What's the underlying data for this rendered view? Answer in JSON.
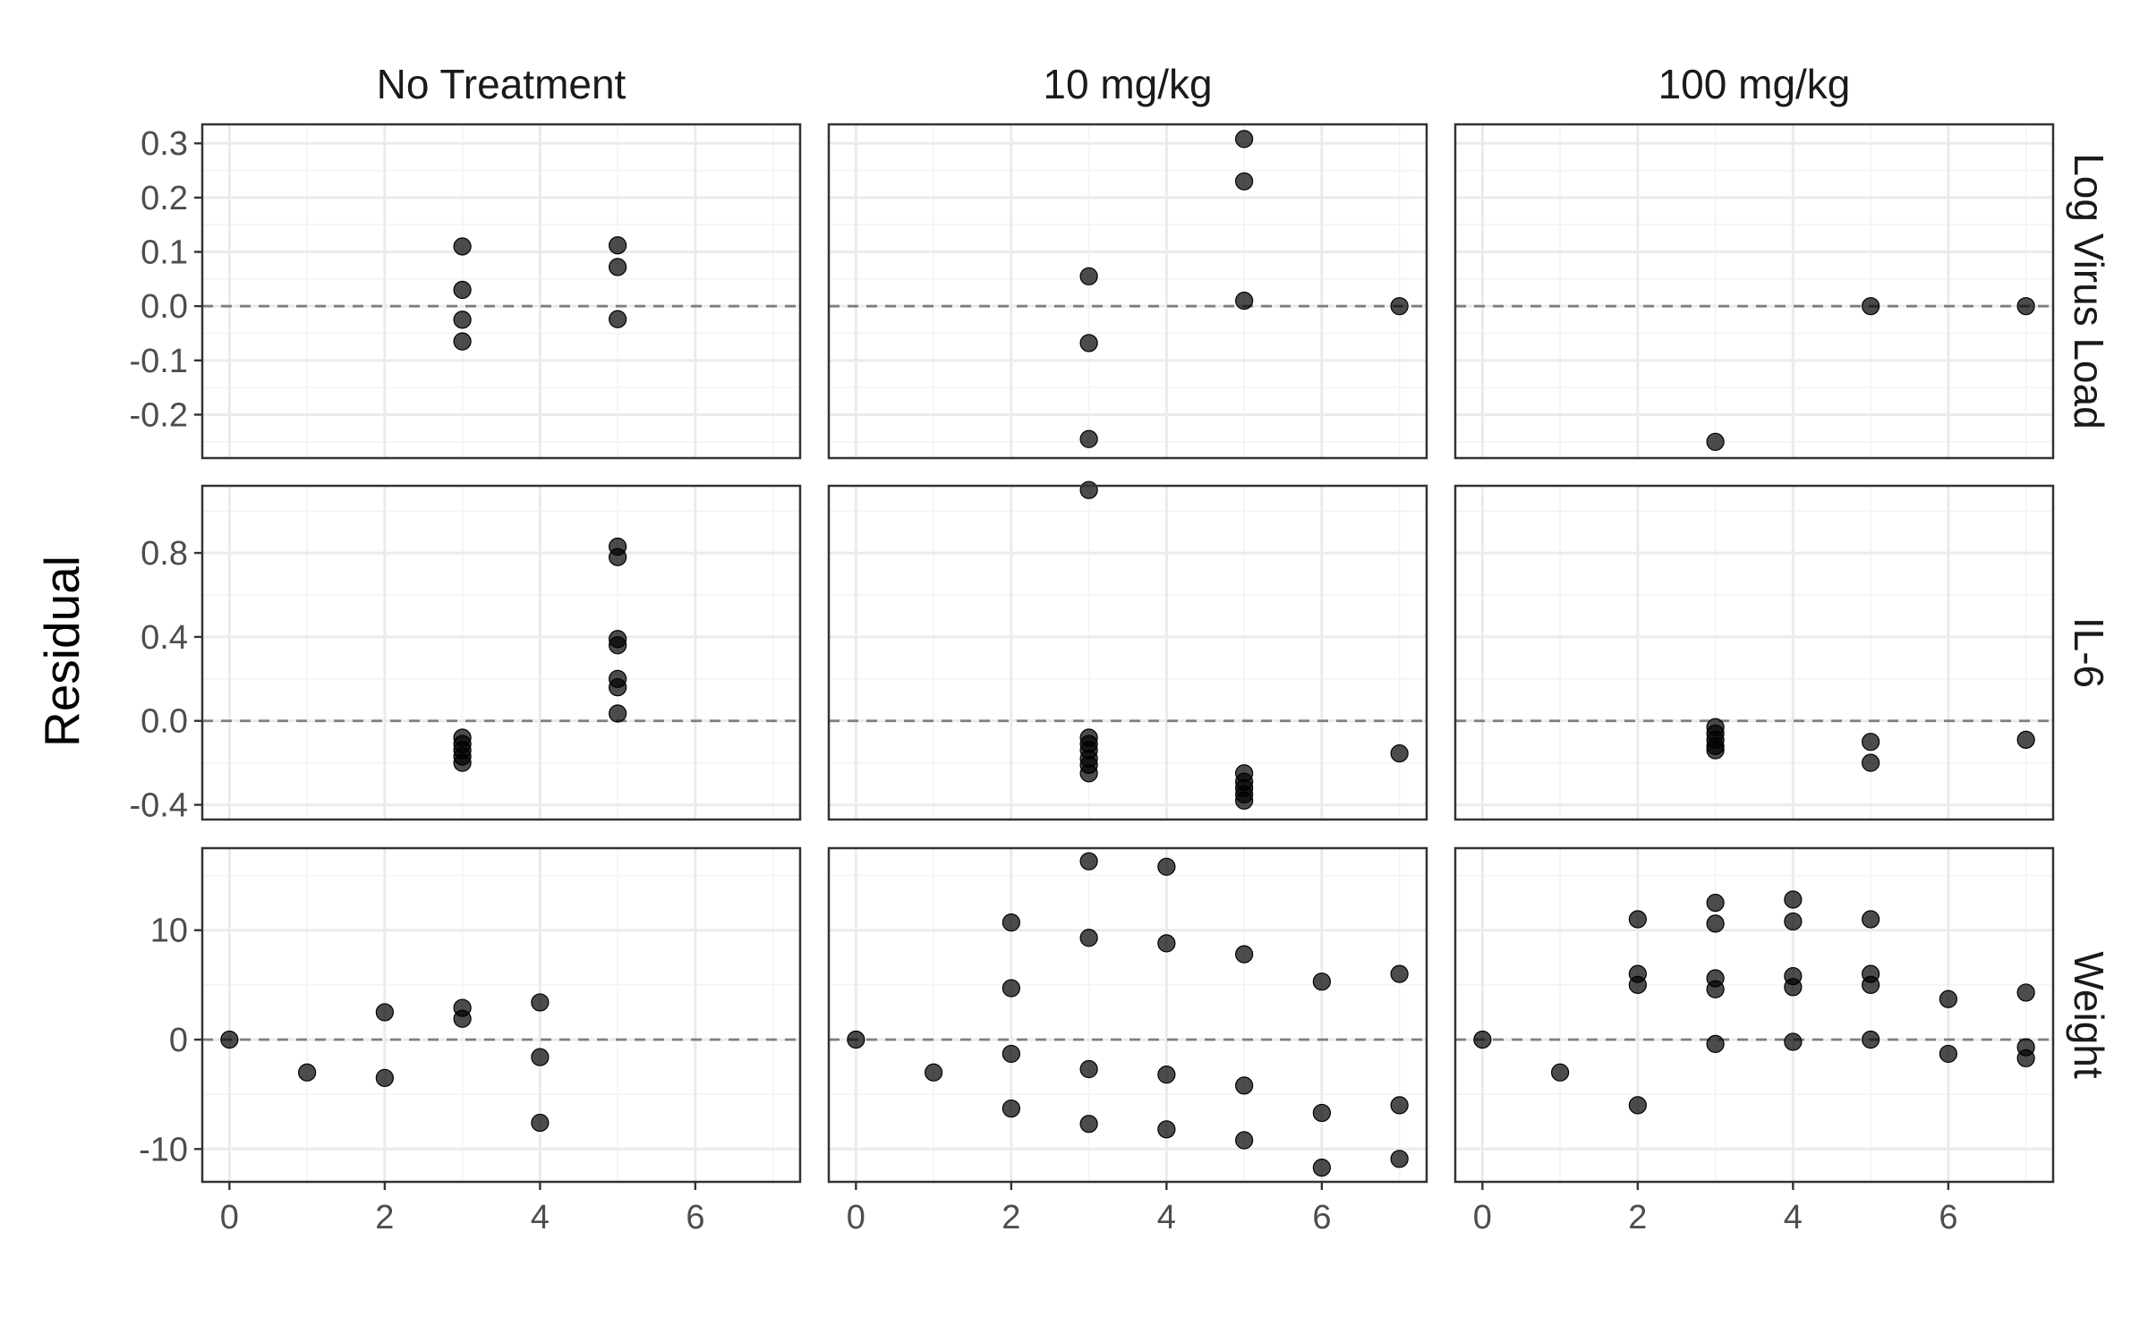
{
  "chart_data": {
    "type": "scatter",
    "ylabel": "Residual",
    "xlabel": "",
    "x_ticks": [
      0,
      2,
      4,
      6
    ],
    "x_range": [
      -0.35,
      7.35
    ],
    "columns": [
      "No Treatment",
      "10 mg/kg",
      "100 mg/kg"
    ],
    "rows": [
      {
        "name": "Log Virus Load",
        "y_range": [
          -0.28,
          0.335
        ],
        "y_ticks": [
          -0.2,
          -0.1,
          0.0,
          0.1,
          0.2,
          0.3
        ],
        "y_tick_labels": [
          "-0.2",
          "-0.1",
          "0.0",
          "0.1",
          "0.2",
          "0.3"
        ]
      },
      {
        "name": "IL-6",
        "y_range": [
          -0.47,
          1.12
        ],
        "y_ticks": [
          -0.4,
          0.0,
          0.4,
          0.8
        ],
        "y_tick_labels": [
          "-0.4",
          "0.0",
          "0.4",
          "0.8"
        ]
      },
      {
        "name": "Weight",
        "y_range": [
          -13.0,
          17.5
        ],
        "y_ticks": [
          -10,
          0,
          10
        ],
        "y_tick_labels": [
          "-10",
          "0",
          "10"
        ]
      }
    ],
    "reference_line_y": 0,
    "grid": true,
    "panels": [
      {
        "row": 0,
        "col": 0,
        "points": [
          [
            3,
            0.11
          ],
          [
            3,
            0.03
          ],
          [
            3,
            -0.025
          ],
          [
            3,
            -0.065
          ],
          [
            5,
            0.112
          ],
          [
            5,
            0.072
          ],
          [
            5,
            -0.024
          ]
        ]
      },
      {
        "row": 0,
        "col": 1,
        "points": [
          [
            3,
            0.055
          ],
          [
            3,
            -0.068
          ],
          [
            3,
            -0.245
          ],
          [
            5,
            0.308
          ],
          [
            5,
            0.23
          ],
          [
            5,
            0.01
          ],
          [
            7,
            0.0
          ]
        ]
      },
      {
        "row": 0,
        "col": 2,
        "points": [
          [
            3,
            -0.25
          ],
          [
            5,
            0.0
          ],
          [
            7,
            0.0
          ]
        ]
      },
      {
        "row": 1,
        "col": 0,
        "points": [
          [
            3,
            -0.08
          ],
          [
            3,
            -0.11
          ],
          [
            3,
            -0.14
          ],
          [
            3,
            -0.17
          ],
          [
            3,
            -0.2
          ],
          [
            5,
            0.83
          ],
          [
            5,
            0.78
          ],
          [
            5,
            0.39
          ],
          [
            5,
            0.36
          ],
          [
            5,
            0.2
          ],
          [
            5,
            0.16
          ],
          [
            5,
            0.035
          ]
        ]
      },
      {
        "row": 1,
        "col": 1,
        "points": [
          [
            3,
            1.1
          ],
          [
            3,
            -0.08
          ],
          [
            3,
            -0.11
          ],
          [
            3,
            -0.14
          ],
          [
            3,
            -0.18
          ],
          [
            3,
            -0.21
          ],
          [
            3,
            -0.25
          ],
          [
            5,
            -0.25
          ],
          [
            5,
            -0.29
          ],
          [
            5,
            -0.32
          ],
          [
            5,
            -0.35
          ],
          [
            5,
            -0.38
          ],
          [
            7,
            -0.155
          ]
        ]
      },
      {
        "row": 1,
        "col": 2,
        "points": [
          [
            3,
            -0.03
          ],
          [
            3,
            -0.06
          ],
          [
            3,
            -0.09
          ],
          [
            3,
            -0.12
          ],
          [
            3,
            -0.14
          ],
          [
            5,
            -0.1
          ],
          [
            5,
            -0.2
          ],
          [
            7,
            -0.09
          ]
        ]
      },
      {
        "row": 2,
        "col": 0,
        "points": [
          [
            0,
            0.0
          ],
          [
            1,
            -3.0
          ],
          [
            2,
            2.5
          ],
          [
            2,
            -3.5
          ],
          [
            3,
            2.9
          ],
          [
            3,
            1.9
          ],
          [
            4,
            3.4
          ],
          [
            4,
            -1.6
          ],
          [
            4,
            -7.6
          ]
        ]
      },
      {
        "row": 2,
        "col": 1,
        "points": [
          [
            0,
            0.0
          ],
          [
            1,
            -3.0
          ],
          [
            2,
            10.7
          ],
          [
            2,
            4.7
          ],
          [
            2,
            -1.3
          ],
          [
            2,
            -6.3
          ],
          [
            3,
            16.3
          ],
          [
            3,
            9.3
          ],
          [
            3,
            -2.7
          ],
          [
            3,
            -7.7
          ],
          [
            4,
            15.8
          ],
          [
            4,
            8.8
          ],
          [
            4,
            -3.2
          ],
          [
            4,
            -8.2
          ],
          [
            5,
            7.8
          ],
          [
            5,
            -4.2
          ],
          [
            5,
            -9.2
          ],
          [
            6,
            5.3
          ],
          [
            6,
            -6.7
          ],
          [
            6,
            -11.7
          ],
          [
            7,
            6.0
          ],
          [
            7,
            -6.0
          ],
          [
            7,
            -10.9
          ]
        ]
      },
      {
        "row": 2,
        "col": 2,
        "points": [
          [
            0,
            0.0
          ],
          [
            1,
            -3.0
          ],
          [
            2,
            11.0
          ],
          [
            2,
            6.0
          ],
          [
            2,
            5.0
          ],
          [
            2,
            -6.0
          ],
          [
            3,
            12.5
          ],
          [
            3,
            10.6
          ],
          [
            3,
            5.6
          ],
          [
            3,
            4.6
          ],
          [
            3,
            -0.4
          ],
          [
            4,
            12.8
          ],
          [
            4,
            10.8
          ],
          [
            4,
            5.8
          ],
          [
            4,
            4.8
          ],
          [
            4,
            -0.2
          ],
          [
            5,
            11.0
          ],
          [
            5,
            6.0
          ],
          [
            5,
            5.0
          ],
          [
            5,
            0.0
          ],
          [
            6,
            3.7
          ],
          [
            6,
            -1.3
          ],
          [
            7,
            4.3
          ],
          [
            7,
            -0.7
          ],
          [
            7,
            -1.7
          ]
        ]
      }
    ]
  }
}
